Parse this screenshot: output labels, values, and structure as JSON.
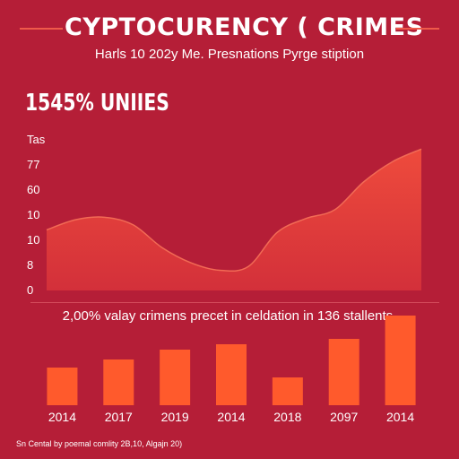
{
  "header": {
    "title": "CYPTOCURENCY ( CRIMES",
    "subtitle": "Harls 10 202y Me. Presnations Pyrge stiption"
  },
  "headline": "1545% UNIIES",
  "caption": "2,00% valay crimens precet in celdation in 136 stallents.",
  "footer": "Sn Cental by poemal comlity 2B,10, Algajn 20)",
  "colors": {
    "background": "#b51e37",
    "area_fill": "#ee4b3c",
    "bar_fill": "#ff5a2c",
    "accent_line": "#ef5a4a",
    "text": "#ffffff"
  },
  "chart_data": [
    {
      "type": "area",
      "title": "",
      "xlabel": "",
      "ylabel": "",
      "y_tick_labels": [
        "Tas",
        "77",
        "60",
        "10",
        "10",
        "8",
        "0"
      ],
      "ylim": [
        0,
        6
      ],
      "grid": false,
      "legend": "none",
      "series": [
        {
          "values": [
            2.4,
            2.8,
            2.9,
            2.6,
            1.7,
            1.1,
            0.8,
            0.95,
            2.3,
            2.85,
            3.2,
            4.3,
            5.1,
            5.6
          ]
        }
      ]
    },
    {
      "type": "bar",
      "title": "",
      "xlabel": "",
      "ylabel": "",
      "categories": [
        "2014",
        "2017",
        "2019",
        "2014",
        "2018",
        "2097",
        "2014"
      ],
      "values": [
        42,
        51,
        62,
        68,
        31,
        74,
        100
      ],
      "ylim": [
        0,
        100
      ],
      "grid": false,
      "legend": "none"
    }
  ]
}
